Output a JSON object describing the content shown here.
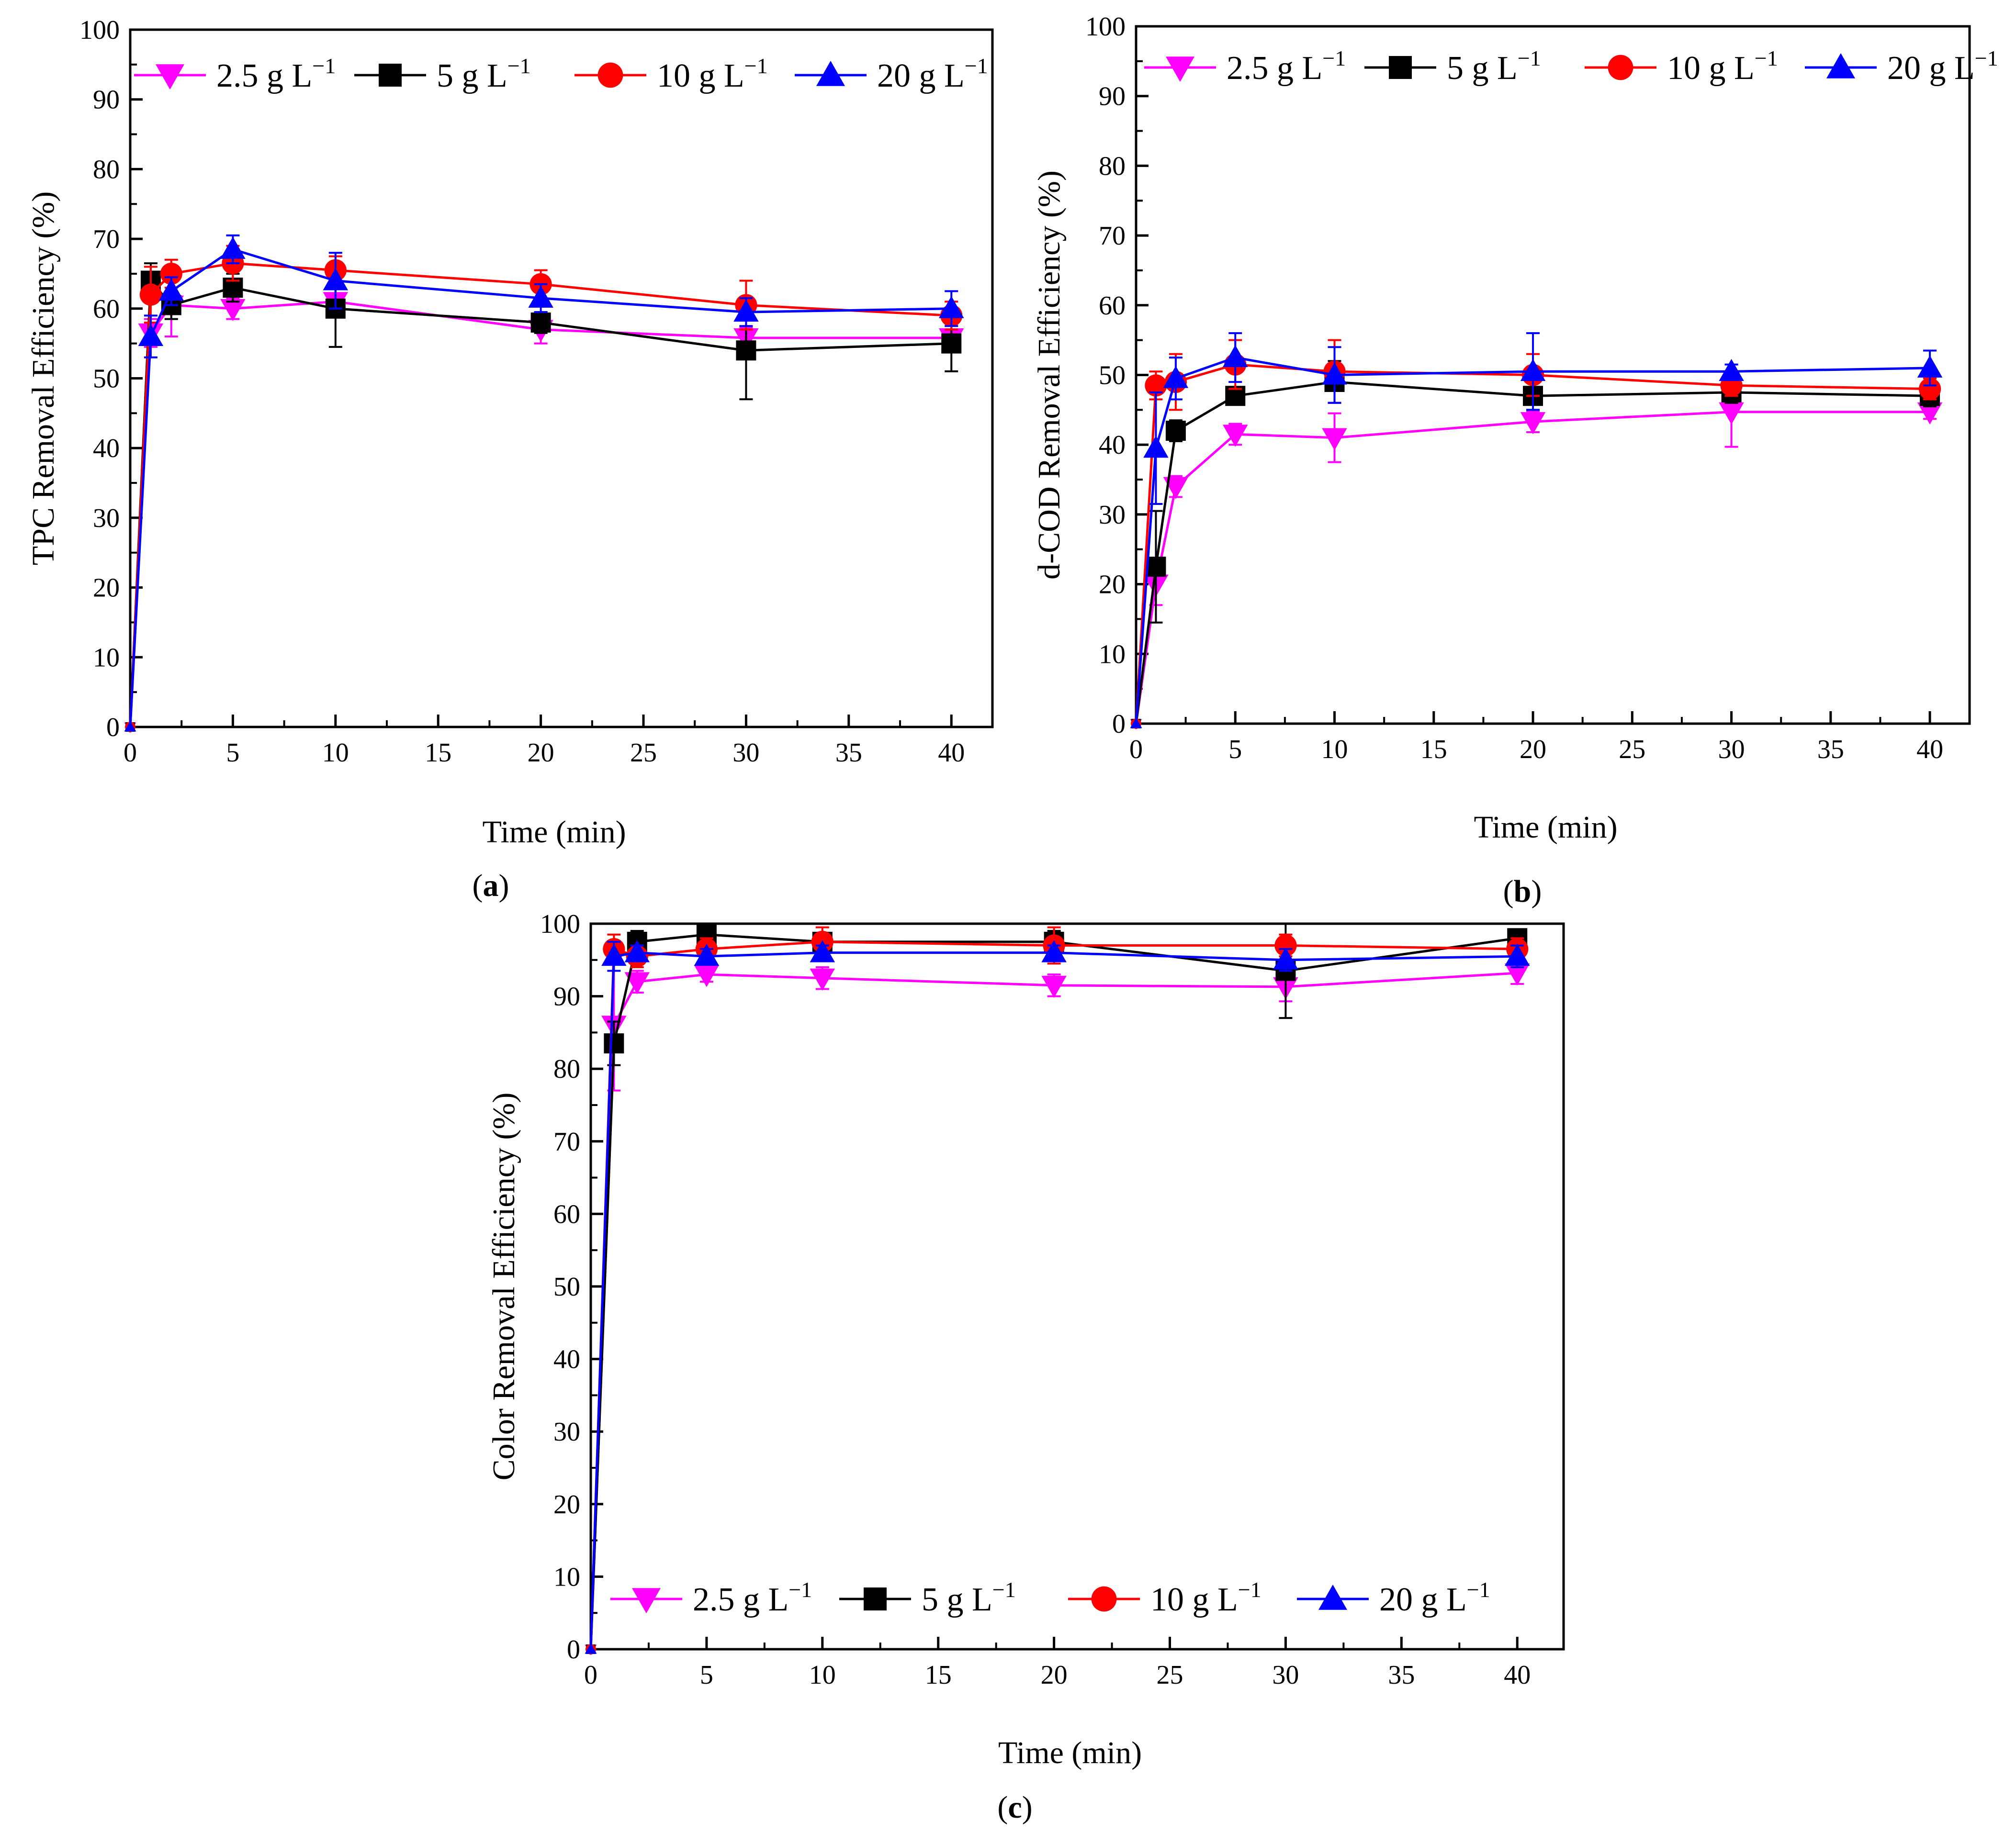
{
  "series_style": {
    "2.5": {
      "color": "#ff00ff",
      "marker": "triangle-down-icon"
    },
    "5": {
      "color": "#000000",
      "marker": "square-icon"
    },
    "10": {
      "color": "#ff0000",
      "marker": "circle-icon"
    },
    "20": {
      "color": "#0000ff",
      "marker": "triangle-up-icon"
    }
  },
  "chart_data": [
    {
      "id": "a",
      "type": "line",
      "panel_label": "a",
      "xlabel": "Time (min)",
      "ylabel": "TPC Removal Efficiency (%)",
      "xlim": [
        0,
        42
      ],
      "ylim": [
        0,
        100
      ],
      "xticks": [
        0,
        5,
        10,
        15,
        20,
        25,
        30,
        35,
        40
      ],
      "yticks": [
        0,
        10,
        20,
        30,
        40,
        50,
        60,
        70,
        80,
        90,
        100
      ],
      "legend_position": "top",
      "x": [
        0,
        1,
        2,
        5,
        10,
        20,
        30,
        40
      ],
      "series": [
        {
          "key": "2.5",
          "name": "2.5 g L⁻¹",
          "values": [
            0,
            56.5,
            60.5,
            60,
            61,
            57,
            55.8,
            55.8
          ],
          "errors": [
            0,
            2,
            4.5,
            1.5,
            2,
            2,
            1.5,
            2
          ]
        },
        {
          "key": "5",
          "name": "5 g L⁻¹",
          "values": [
            0,
            64,
            60.5,
            63,
            60,
            58,
            54,
            55
          ],
          "errors": [
            0,
            2.5,
            2,
            2,
            5.5,
            1.5,
            7,
            4
          ]
        },
        {
          "key": "10",
          "name": "10 g L⁻¹",
          "values": [
            0,
            62,
            65,
            66.5,
            65.5,
            63.5,
            60.5,
            59
          ],
          "errors": [
            0,
            4,
            2,
            2.5,
            2,
            2,
            3.5,
            2
          ]
        },
        {
          "key": "20",
          "name": "20 g L⁻¹",
          "values": [
            0,
            56,
            62.5,
            68.5,
            64,
            61.5,
            59.5,
            60
          ],
          "errors": [
            0,
            3,
            2,
            2,
            4,
            2,
            2,
            2.5
          ]
        }
      ]
    },
    {
      "id": "b",
      "type": "line",
      "panel_label": "b",
      "xlabel": "Time (min)",
      "ylabel": "d-COD Removal Efficiency (%)",
      "xlim": [
        0,
        42
      ],
      "ylim": [
        0,
        100
      ],
      "xticks": [
        0,
        5,
        10,
        15,
        20,
        25,
        30,
        35,
        40
      ],
      "yticks": [
        0,
        10,
        20,
        30,
        40,
        50,
        60,
        70,
        80,
        90,
        100
      ],
      "legend_position": "top",
      "x": [
        0,
        1,
        2,
        5,
        10,
        20,
        30,
        40
      ],
      "series": [
        {
          "key": "2.5",
          "name": "2.5 g L⁻¹",
          "values": [
            0,
            20,
            34,
            41.5,
            41,
            43.3,
            44.7,
            44.7
          ],
          "errors": [
            0,
            3,
            1.5,
            1.5,
            3.5,
            1.5,
            5,
            1
          ]
        },
        {
          "key": "5",
          "name": "5 g L⁻¹",
          "values": [
            0,
            22.5,
            42,
            47,
            49,
            47,
            47.5,
            47
          ],
          "errors": [
            0,
            8,
            1.5,
            1,
            3,
            2,
            1.5,
            1.5
          ]
        },
        {
          "key": "10",
          "name": "10 g L⁻¹",
          "values": [
            0,
            48.5,
            49,
            51.5,
            50.5,
            50,
            48.5,
            48
          ],
          "errors": [
            0,
            2,
            4,
            3.5,
            4.5,
            3,
            1.5,
            1.5
          ]
        },
        {
          "key": "20",
          "name": "20 g L⁻¹",
          "values": [
            0,
            39.5,
            49.5,
            52.5,
            50,
            50.5,
            50.5,
            51
          ],
          "errors": [
            0,
            8,
            3,
            3.5,
            4,
            5.5,
            1,
            2.5
          ]
        }
      ]
    },
    {
      "id": "c",
      "type": "line",
      "panel_label": "c",
      "xlabel": "Time (min)",
      "ylabel": "Color Removal Efficiency (%)",
      "xlim": [
        0,
        42
      ],
      "ylim": [
        0,
        100
      ],
      "xticks": [
        0,
        5,
        10,
        15,
        20,
        25,
        30,
        35,
        40
      ],
      "yticks": [
        0,
        10,
        20,
        30,
        40,
        50,
        60,
        70,
        80,
        90,
        100
      ],
      "legend_position": "bottom",
      "x": [
        0,
        1,
        2,
        5,
        10,
        20,
        30,
        40
      ],
      "series": [
        {
          "key": "2.5",
          "name": "2.5 g L⁻¹",
          "values": [
            0,
            86,
            92,
            93,
            92.5,
            91.5,
            91.3,
            93.2
          ],
          "errors": [
            0,
            9,
            1.5,
            1,
            1.5,
            1.5,
            2,
            1.5
          ]
        },
        {
          "key": "5",
          "name": "5 g L⁻¹",
          "values": [
            0,
            83.5,
            97.5,
            98.5,
            97.5,
            97.5,
            93.5,
            98
          ],
          "errors": [
            0,
            3,
            1.5,
            1,
            1,
            1.5,
            6.5,
            1
          ]
        },
        {
          "key": "10",
          "name": "10 g L⁻¹",
          "values": [
            0,
            96.5,
            95.5,
            96.5,
            97.5,
            97,
            97,
            96.5
          ],
          "errors": [
            0,
            2,
            1.5,
            1.5,
            2,
            2.5,
            1.5,
            1.5
          ]
        },
        {
          "key": "20",
          "name": "20 g L⁻¹",
          "values": [
            0,
            95.5,
            96,
            95.5,
            96,
            96,
            95,
            95.5
          ],
          "errors": [
            0,
            2,
            1,
            1,
            1,
            1,
            1.5,
            1.5
          ]
        }
      ]
    }
  ]
}
